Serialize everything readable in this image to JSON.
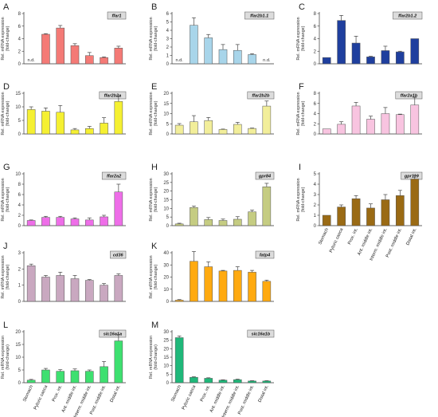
{
  "shared": {
    "ylabel_line1": "Rel. mRNA expression",
    "ylabel_line2": "(fold-change)",
    "nd_label": "n.d.",
    "categories": [
      "Stomach",
      "Pyloric caeca",
      "Prox. int.",
      "Ant. middle int.",
      "Interm. middle int.",
      "Post. middle int.",
      "Distal int."
    ]
  },
  "chart_data": [
    {
      "type": "bar",
      "letter": "A",
      "title": "ffar1",
      "color": "#f47a76",
      "ylim": [
        0,
        8
      ],
      "yticks": [
        0,
        2,
        4,
        6,
        8
      ],
      "values": [
        null,
        4.7,
        5.7,
        2.9,
        1.3,
        1.0,
        2.5
      ],
      "errors": [
        0,
        0.1,
        0.4,
        0.3,
        0.5,
        0.1,
        0.3
      ],
      "nd": [
        true,
        false,
        false,
        false,
        false,
        false,
        false
      ]
    },
    {
      "type": "bar",
      "letter": "B",
      "title": "ffar2b1.1",
      "color": "#a8d5ea",
      "ylim": [
        0,
        6
      ],
      "yticks": [
        0,
        1,
        2,
        3,
        4,
        5,
        6
      ],
      "values": [
        null,
        4.6,
        3.1,
        1.7,
        1.6,
        1.1,
        null
      ],
      "errors": [
        0,
        0.9,
        0.4,
        0.6,
        0.7,
        0.1,
        0
      ],
      "nd": [
        true,
        false,
        false,
        false,
        false,
        false,
        true
      ]
    },
    {
      "type": "bar",
      "letter": "C",
      "title": "ffar2b1.2",
      "color": "#1f3f9e",
      "ylim": [
        0,
        8
      ],
      "yticks": [
        0,
        2,
        4,
        6,
        8
      ],
      "values": [
        1.0,
        6.9,
        3.3,
        1.1,
        2.1,
        1.9,
        4.0
      ],
      "errors": [
        0,
        0.8,
        1.1,
        0.1,
        0.7,
        0.1,
        0
      ],
      "nd": [
        false,
        false,
        false,
        false,
        false,
        false,
        false
      ]
    },
    {
      "type": "bar",
      "letter": "D",
      "title": "ffar2b2a",
      "color": "#f5f032",
      "ylim": [
        0,
        15
      ],
      "yticks": [
        0,
        5,
        10,
        15
      ],
      "values": [
        9.0,
        8.4,
        8.0,
        1.5,
        2.0,
        4.0,
        12.0
      ],
      "errors": [
        1.0,
        1.2,
        2.5,
        0.5,
        0.8,
        2.0,
        2.0
      ],
      "nd": [
        false,
        false,
        false,
        false,
        false,
        false,
        false
      ]
    },
    {
      "type": "bar",
      "letter": "E",
      "title": "ffar2b2b",
      "color": "#f2ee9a",
      "ylim": [
        0,
        20
      ],
      "yticks": [
        0,
        5,
        10,
        15,
        20
      ],
      "values": [
        4.3,
        6.0,
        6.6,
        2.2,
        4.7,
        2.7,
        13.7
      ],
      "errors": [
        0.8,
        3.0,
        1.5,
        0.2,
        1.0,
        0.2,
        2.5
      ],
      "nd": [
        false,
        false,
        false,
        false,
        false,
        false,
        false
      ]
    },
    {
      "type": "bar",
      "letter": "F",
      "title": "ffar2a1b",
      "color": "#f8c4e0",
      "ylim": [
        0,
        8
      ],
      "yticks": [
        0,
        2,
        4,
        6,
        8
      ],
      "values": [
        1.0,
        1.9,
        5.5,
        2.9,
        4.0,
        3.8,
        5.7
      ],
      "errors": [
        0,
        0.5,
        0.7,
        0.6,
        1.2,
        0.1,
        1.5
      ],
      "nd": [
        false,
        false,
        false,
        false,
        false,
        false,
        false
      ]
    },
    {
      "type": "bar",
      "letter": "G",
      "title": "ffar2a2",
      "color": "#ee6ee8",
      "ylim": [
        0,
        10
      ],
      "yticks": [
        0,
        2,
        4,
        6,
        8,
        10
      ],
      "values": [
        1.0,
        1.6,
        1.6,
        1.3,
        1.1,
        1.7,
        6.5
      ],
      "errors": [
        0.1,
        0.2,
        0.2,
        0.2,
        0.4,
        0.3,
        1.5
      ],
      "nd": [
        false,
        false,
        false,
        false,
        false,
        false,
        false
      ]
    },
    {
      "type": "bar",
      "letter": "H",
      "title": "gpr84",
      "color": "#c5cc82",
      "ylim": [
        0,
        30
      ],
      "yticks": [
        0,
        5,
        10,
        15,
        20,
        25,
        30
      ],
      "values": [
        1.0,
        10.5,
        3.5,
        3.0,
        3.7,
        8.0,
        22.5
      ],
      "errors": [
        0.4,
        0.8,
        1.2,
        0.8,
        1.5,
        1.0,
        2.0
      ],
      "nd": [
        false,
        false,
        false,
        false,
        false,
        false,
        false
      ]
    },
    {
      "type": "bar",
      "letter": "I",
      "title": "gpr119",
      "color": "#9a6a14",
      "ylim": [
        0,
        5
      ],
      "yticks": [
        0,
        1,
        2,
        3,
        4,
        5
      ],
      "values": [
        1.0,
        1.8,
        2.6,
        1.7,
        2.5,
        2.9,
        4.5
      ],
      "errors": [
        0,
        0.2,
        0.3,
        0.4,
        0.5,
        0.5,
        0.3
      ],
      "nd": [
        false,
        false,
        false,
        false,
        false,
        false,
        false
      ]
    },
    {
      "type": "bar",
      "letter": "J",
      "title": "cd36",
      "color": "#c9a8c0",
      "ylim": [
        0,
        3
      ],
      "yticks": [
        0,
        1,
        2,
        3
      ],
      "values": [
        2.2,
        1.5,
        1.6,
        1.4,
        1.3,
        1.0,
        1.6
      ],
      "errors": [
        0.1,
        0.1,
        0.2,
        0.2,
        0.05,
        0.1,
        0.1
      ],
      "nd": [
        false,
        false,
        false,
        false,
        false,
        false,
        false
      ]
    },
    {
      "type": "bar",
      "letter": "K",
      "title": "fatp4",
      "color": "#ffaa10",
      "ylim": [
        0,
        40
      ],
      "yticks": [
        0,
        10,
        20,
        30,
        40
      ],
      "values": [
        1.0,
        33.0,
        28.5,
        25.0,
        25.5,
        24.0,
        16.5
      ],
      "errors": [
        0.5,
        8.0,
        4.0,
        0.5,
        3.0,
        1.5,
        1.0
      ],
      "nd": [
        false,
        false,
        false,
        false,
        false,
        false,
        false
      ]
    },
    {
      "type": "bar",
      "letter": "L",
      "title": "slc16a1a",
      "color": "#3ee070",
      "ylim": [
        0,
        20
      ],
      "yticks": [
        0,
        5,
        10,
        15,
        20
      ],
      "values": [
        1.0,
        5.0,
        4.5,
        4.7,
        4.5,
        6.3,
        16.4
      ],
      "errors": [
        0.3,
        0.6,
        0.6,
        0.7,
        0.5,
        2.0,
        2.5
      ],
      "nd": [
        false,
        false,
        false,
        false,
        false,
        false,
        false
      ]
    },
    {
      "type": "bar",
      "letter": "M",
      "title": "slc16a1b",
      "color": "#1fb87a",
      "ylim": [
        0,
        30
      ],
      "yticks": [
        0,
        5,
        10,
        15,
        20,
        25,
        30
      ],
      "values": [
        26.5,
        3.2,
        2.6,
        1.5,
        1.8,
        1.0,
        1.0
      ],
      "errors": [
        1.0,
        0.3,
        0.3,
        0.2,
        0.3,
        0.2,
        0.2
      ],
      "nd": [
        false,
        false,
        false,
        false,
        false,
        false,
        false
      ]
    }
  ]
}
